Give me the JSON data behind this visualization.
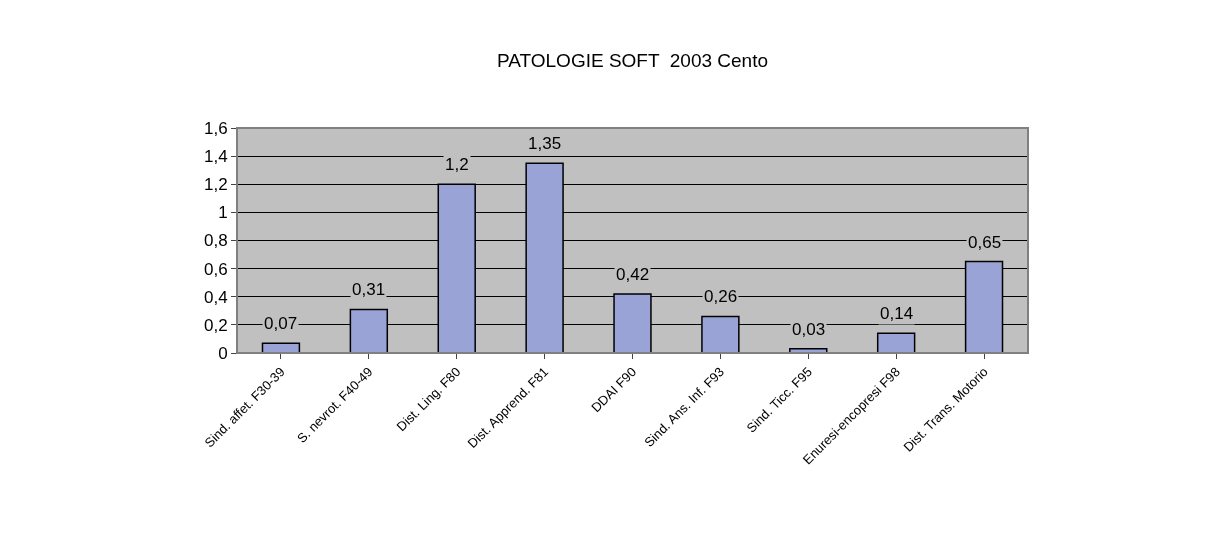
{
  "chart_data": {
    "type": "bar",
    "title": "PATOLOGIE SOFT  2003 Cento",
    "categories": [
      "Sind. affet. F30-39",
      "S. nevrot. F40-49",
      "Dist. Ling. F80",
      "Dist. Apprend. F81",
      "DDAI F90",
      "Sind. Ans. Inf. F93",
      "Sind. Ticc. F95",
      "Enuresi-encopresi F98",
      "Dist. Trans. Motorio"
    ],
    "values": [
      0.07,
      0.31,
      1.2,
      1.35,
      0.42,
      0.26,
      0.03,
      0.14,
      0.65
    ],
    "value_labels": [
      "0,07",
      "0,31",
      "1,2",
      "1,35",
      "0,42",
      "0,26",
      "0,03",
      "0,14",
      "0,65"
    ],
    "color": "#9aa3d6",
    "ylim": [
      0,
      1.6
    ],
    "yticks": [
      0,
      {
        "value": 0.2,
        "label": "0,2"
      },
      {
        "value": 0.4,
        "label": "0,4"
      },
      {
        "value": 0.6,
        "label": "0,6"
      },
      {
        "value": 0.8,
        "label": "0,8"
      },
      1,
      {
        "value": 1.2,
        "label": "1,2"
      },
      {
        "value": 1.4,
        "label": "1,4"
      },
      {
        "value": 1.6,
        "label": "1,6"
      }
    ],
    "grid": "y",
    "legend": false
  }
}
